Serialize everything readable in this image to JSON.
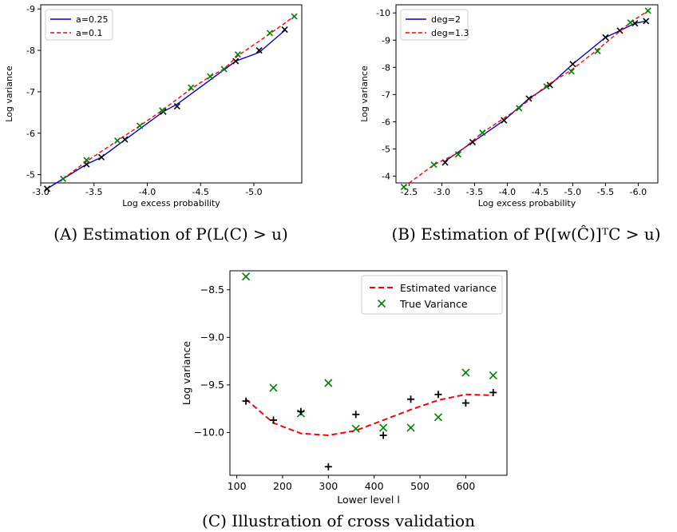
{
  "chart_data": [
    {
      "id": "A",
      "type": "line",
      "caption": "(A) Estimation of P(L(C) > u)",
      "xlabel": "Log excess probability",
      "ylabel": "Log variance",
      "xlim": [
        -3.0,
        -5.45
      ],
      "ylim": [
        -4.8,
        -9.1
      ],
      "x_ticks": [
        -3.0,
        -3.5,
        -4.0,
        -4.5,
        -5.0
      ],
      "x_tick_labels": [
        "-3.0",
        "-3.5",
        "-4.0",
        "-4.5",
        "-5.0"
      ],
      "y_ticks": [
        -5,
        -6,
        -7,
        -8,
        -9
      ],
      "y_tick_labels": [
        "-5",
        "-6",
        "-7",
        "-8",
        "-9"
      ],
      "legend_position": "top-left",
      "series": [
        {
          "name": "a=0.25",
          "style": "solid",
          "color": "#0000cc",
          "marker_color": "#000000",
          "x": [
            -3.06,
            -3.43,
            -3.57,
            -3.79,
            -4.15,
            -4.28,
            -4.83,
            -5.05,
            -5.29
          ],
          "fit": [
            -4.66,
            -5.25,
            -5.42,
            -5.84,
            -6.52,
            -6.7,
            -7.74,
            -7.95,
            -8.48
          ],
          "markers": [
            -4.66,
            -5.25,
            -5.42,
            -5.85,
            -6.52,
            -6.65,
            -7.74,
            -8.0,
            -8.5
          ]
        },
        {
          "name": "a=0.1",
          "style": "dashed",
          "color": "#ff0000",
          "marker_color": "#008000",
          "x": [
            -3.21,
            -3.43,
            -3.72,
            -3.93,
            -4.14,
            -4.41,
            -4.59,
            -4.72,
            -4.85,
            -5.15,
            -5.38
          ],
          "fit": [
            -4.9,
            -5.32,
            -5.82,
            -6.18,
            -6.55,
            -7.07,
            -7.37,
            -7.55,
            -7.87,
            -8.4,
            -8.82
          ],
          "markers": [
            -4.9,
            -5.35,
            -5.82,
            -6.18,
            -6.55,
            -7.1,
            -7.37,
            -7.55,
            -7.9,
            -8.42,
            -8.82
          ]
        }
      ]
    },
    {
      "id": "B",
      "type": "line",
      "caption": "(B) Estimation of P([w(Ĉ)]ᵀC > u)",
      "xlabel": "Log excess probability",
      "ylabel": "Log variance",
      "xlim": [
        -2.3,
        -6.3
      ],
      "ylim": [
        -3.75,
        -10.3
      ],
      "x_ticks": [
        -2.5,
        -3.0,
        -3.5,
        -4.0,
        -4.5,
        -5.0,
        -5.5,
        -6.0
      ],
      "x_tick_labels": [
        "-2.5",
        "-3.0",
        "-3.5",
        "-4.0",
        "-4.5",
        "-5.0",
        "-5.5",
        "-6.0"
      ],
      "y_ticks": [
        -4,
        -5,
        -6,
        -7,
        -8,
        -9,
        -10
      ],
      "y_tick_labels": [
        "-4",
        "-5",
        "-6",
        "-7",
        "-8",
        "-9",
        "-10"
      ],
      "legend_position": "top-left",
      "series": [
        {
          "name": "deg=2",
          "style": "solid",
          "color": "#0000cc",
          "marker_color": "#000000",
          "x": [
            -3.05,
            -3.47,
            -3.95,
            -4.33,
            -4.65,
            -5.0,
            -5.5,
            -5.72,
            -5.95,
            -6.12
          ],
          "fit": [
            -4.55,
            -5.25,
            -6.05,
            -6.85,
            -7.35,
            -8.12,
            -9.1,
            -9.35,
            -9.62,
            -9.7
          ],
          "markers": [
            -4.5,
            -5.25,
            -6.05,
            -6.85,
            -7.35,
            -8.12,
            -9.1,
            -9.35,
            -9.62,
            -9.7
          ]
        },
        {
          "name": "deg=1.3",
          "style": "dashed",
          "color": "#ff0000",
          "marker_color": "#008000",
          "x": [
            -2.42,
            -2.88,
            -3.25,
            -3.62,
            -4.18,
            -4.6,
            -4.98,
            -5.38,
            -5.88,
            -6.15
          ],
          "fit": [
            -3.6,
            -4.42,
            -4.85,
            -5.6,
            -6.5,
            -7.33,
            -7.9,
            -8.65,
            -9.65,
            -10.08
          ],
          "markers": [
            -3.6,
            -4.42,
            -4.8,
            -5.6,
            -6.5,
            -7.3,
            -7.85,
            -8.6,
            -9.65,
            -10.08
          ]
        }
      ]
    },
    {
      "id": "C",
      "type": "line",
      "caption": "(C) Illustration of cross validation",
      "xlabel": "Lower level l",
      "ylabel": "Log variance",
      "xlim": [
        85,
        690
      ],
      "ylim": [
        -10.45,
        -8.3
      ],
      "x_ticks": [
        100,
        200,
        300,
        400,
        500,
        600
      ],
      "x_tick_labels": [
        "100",
        "200",
        "300",
        "400",
        "500",
        "600"
      ],
      "y_ticks": [
        -10.0,
        -9.5,
        -9.0,
        -8.5
      ],
      "y_tick_labels": [
        "−10.0",
        "−9.5",
        "−9.0",
        "−8.5"
      ],
      "legend_position": "top-right",
      "estimated": {
        "name": "Estimated variance",
        "color": "#ff0000",
        "x": [
          120,
          180,
          240,
          300,
          360,
          420,
          480,
          540,
          600,
          660
        ],
        "y": [
          -9.65,
          -9.9,
          -10.01,
          -10.03,
          -9.98,
          -9.87,
          -9.76,
          -9.66,
          -9.6,
          -9.61
        ]
      },
      "true_variance": {
        "name": "True Variance",
        "color": "#008000",
        "x": [
          120,
          180,
          240,
          300,
          360,
          420,
          480,
          540,
          600,
          660
        ],
        "y": [
          -8.36,
          -9.53,
          -9.8,
          -9.48,
          -9.96,
          -9.95,
          -9.95,
          -9.84,
          -9.37,
          -9.4
        ]
      },
      "plus_markers": {
        "color": "#000000",
        "x": [
          120,
          180,
          240,
          300,
          360,
          420,
          480,
          540,
          600,
          660
        ],
        "y": [
          -9.67,
          -9.87,
          -9.78,
          -10.36,
          -9.81,
          -10.03,
          -9.65,
          -9.6,
          -9.69,
          -9.58
        ]
      }
    }
  ]
}
